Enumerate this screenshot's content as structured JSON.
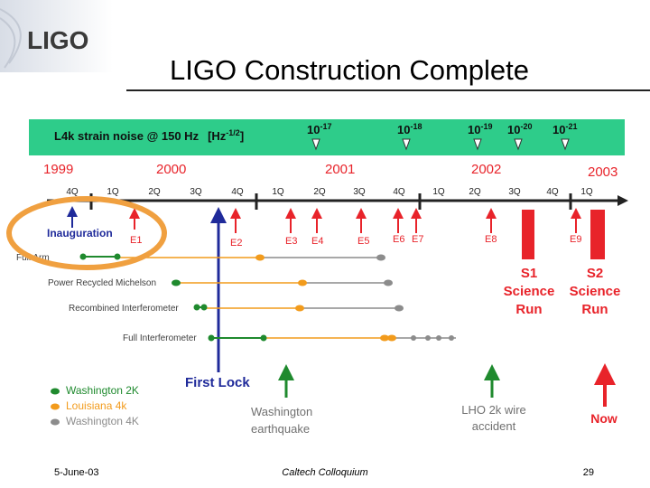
{
  "logo": {
    "text": "LIGO"
  },
  "title": "LIGO Construction Complete",
  "strain_banner": {
    "label": "L4k strain noise @ 150 Hz",
    "unit_base": "[Hz",
    "unit_exp": "-1/2",
    "unit_close": "]",
    "levels": [
      {
        "base": "10",
        "exp": "-17"
      },
      {
        "base": "10",
        "exp": "-18"
      },
      {
        "base": "10",
        "exp": "-19"
      },
      {
        "base": "10",
        "exp": "-20"
      },
      {
        "base": "10",
        "exp": "-21"
      }
    ]
  },
  "years": [
    "1999",
    "2000",
    "2001",
    "2002",
    "2003"
  ],
  "quarters": [
    "4Q",
    "1Q",
    "2Q",
    "3Q",
    "4Q",
    "1Q",
    "2Q",
    "3Q",
    "4Q",
    "1Q",
    "2Q",
    "3Q",
    "4Q",
    "1Q"
  ],
  "engineering_runs": [
    "E1",
    "E2",
    "E3",
    "E4",
    "E5",
    "E6",
    "E7",
    "E8",
    "E9"
  ],
  "milestones": {
    "inauguration": "Inauguration",
    "first_lock": "First Lock",
    "quake_line1": "Washington",
    "quake_line2": "earthquake",
    "wire_line1": "LHO 2k wire",
    "wire_line2": "accident",
    "now": "Now"
  },
  "science_runs": [
    {
      "name": "S1",
      "line2": "Science",
      "line3": "Run"
    },
    {
      "name": "S2",
      "line2": "Science",
      "line3": "Run"
    }
  ],
  "configurations": [
    "Full Arm",
    "Power Recycled Michelson",
    "Recombined Interferometer",
    "Full Interferometer"
  ],
  "legend": [
    {
      "label": "Washington 2K",
      "color": "#1f8a2e"
    },
    {
      "label": "Louisiana 4k",
      "color": "#f29b1c"
    },
    {
      "label": "Washington 4K",
      "color": "#8c8c8c"
    }
  ],
  "colors": {
    "banner": "#2ecc8a",
    "title_rule": "#222222",
    "red": "#e8232a",
    "blue": "#1f2a9a",
    "timeline": "#222222",
    "circle": "#f0a040"
  },
  "footer": {
    "date": "5-June-03",
    "venue": "Caltech Colloquium",
    "page": "29"
  }
}
